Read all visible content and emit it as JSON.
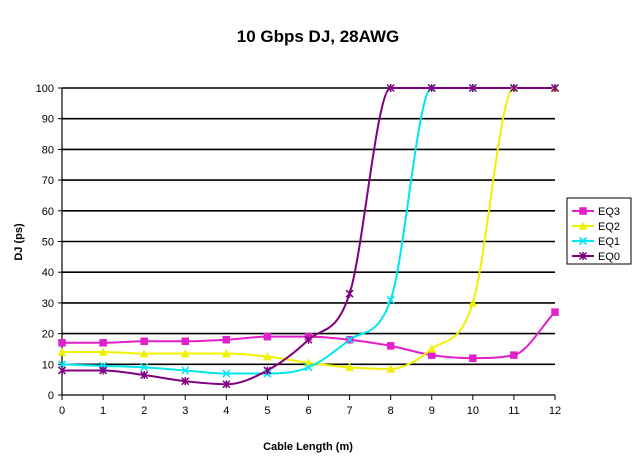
{
  "chart_data": {
    "type": "line",
    "title": "10 Gbps DJ, 28AWG",
    "xlabel": "Cable Length (m)",
    "ylabel": "DJ (ps)",
    "x": [
      0,
      1,
      2,
      3,
      4,
      5,
      6,
      7,
      8,
      9,
      10,
      11,
      12
    ],
    "xlim": [
      0,
      12
    ],
    "ylim": [
      0,
      100
    ],
    "xticks": [
      "0",
      "1",
      "2",
      "3",
      "4",
      "5",
      "6",
      "7",
      "8",
      "9",
      "10",
      "11",
      "12"
    ],
    "yticks": [
      "0",
      "10",
      "20",
      "30",
      "40",
      "50",
      "60",
      "70",
      "80",
      "90",
      "100"
    ],
    "grid": "horizontal",
    "legend": "right",
    "series": [
      {
        "name": "EQ3",
        "color": "#e020c8",
        "marker": "square",
        "values": [
          17,
          17,
          17.5,
          17.5,
          18,
          19,
          19,
          18,
          16,
          13,
          12,
          13,
          27
        ]
      },
      {
        "name": "EQ2",
        "color": "#f0f000",
        "marker": "triangle",
        "values": [
          14,
          14,
          13.5,
          13.5,
          13.5,
          12.5,
          10.5,
          9,
          8.5,
          15,
          30,
          100,
          100
        ]
      },
      {
        "name": "EQ1",
        "color": "#00e6f0",
        "marker": "x",
        "values": [
          10,
          9.5,
          9,
          8,
          7,
          7,
          9,
          18,
          31,
          100,
          100,
          100,
          100
        ]
      },
      {
        "name": "EQ0",
        "color": "#800080",
        "marker": "star",
        "values": [
          8,
          8,
          6.5,
          4.5,
          3.5,
          8,
          18,
          33,
          100,
          100,
          100,
          100,
          100
        ]
      }
    ]
  }
}
